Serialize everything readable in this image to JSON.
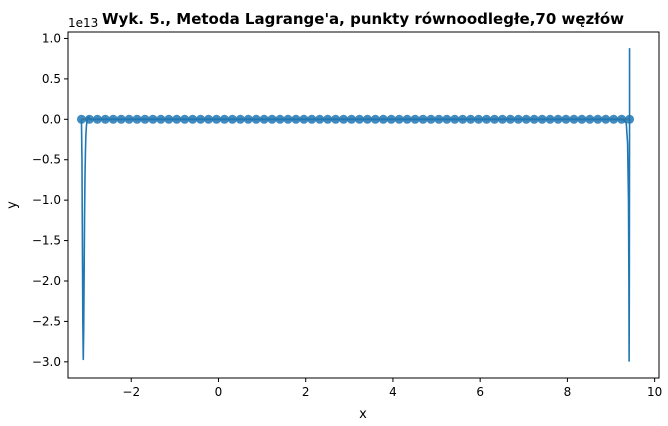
{
  "chart_data": {
    "type": "line",
    "title": "Wyk. 5., Metoda Lagrange'a, punkty równoodległe,70 węzłów",
    "xlabel": "x",
    "ylabel": "y",
    "y_scale_label": "1e13",
    "xlim": [
      -3.45,
      10.1
    ],
    "ylim": [
      -3.2,
      1.08
    ],
    "x_ticks": [
      -2,
      0,
      2,
      4,
      6,
      8,
      10
    ],
    "x_tick_labels": [
      "−2",
      "0",
      "2",
      "4",
      "6",
      "8",
      "10"
    ],
    "y_ticks": [
      1.0,
      0.5,
      0.0,
      -0.5,
      -1.0,
      -1.5,
      -2.0,
      -2.5,
      -3.0
    ],
    "y_tick_labels": [
      "1.0",
      "0.5",
      "0.0",
      "−0.5",
      "−1.0",
      "−1.5",
      "−2.0",
      "−2.5",
      "−3.0"
    ],
    "grid": false,
    "colors": {
      "line": "#1f77b4",
      "nodes": "#1f77b4",
      "function": "#ff7f0e"
    },
    "series": [
      {
        "kind": "interpolant",
        "x": [
          -3.1416,
          -3.13,
          -3.12,
          -3.11,
          -3.1,
          -3.09,
          -3.08,
          -3.07,
          -3.06,
          -3.05,
          -3.04,
          -3.03,
          -3.02,
          -3.0,
          -2.98,
          -2.95,
          -2.9,
          -2.8,
          9.2,
          9.3,
          9.35,
          9.38,
          9.4,
          9.41,
          9.415,
          9.42,
          9.425,
          9.4248
        ],
        "y": [
          0.0,
          -0.5,
          -1.5,
          -2.5,
          -2.97,
          -2.6,
          -1.9,
          -1.2,
          -0.7,
          -0.4,
          -0.2,
          -0.1,
          -0.04,
          0.02,
          0.03,
          0.0,
          0.0,
          0.0,
          0.0,
          -0.01,
          -0.05,
          -0.3,
          -1.0,
          -2.0,
          -2.99,
          -2.0,
          0.0,
          0.88
        ]
      },
      {
        "kind": "nodes",
        "count": 70,
        "x_start": -3.1416,
        "x_end": 9.4248,
        "y": 0.0
      }
    ]
  }
}
